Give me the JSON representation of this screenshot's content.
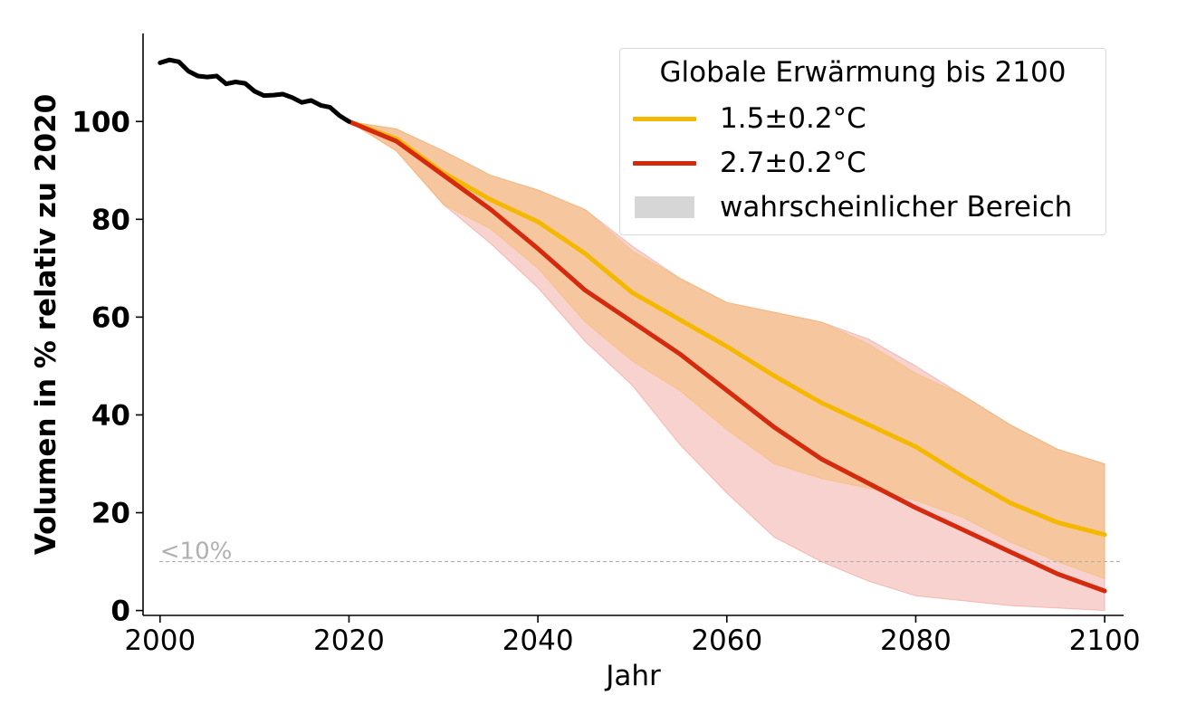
{
  "chart_data": {
    "type": "line",
    "title": "",
    "xlabel": "Jahr",
    "ylabel": "Volumen in % relativ zu 2020",
    "xlim": [
      1998.2,
      2102
    ],
    "ylim": [
      -1,
      118
    ],
    "xticks": [
      2000,
      2020,
      2040,
      2060,
      2080,
      2100
    ],
    "yticks": [
      0,
      20,
      40,
      60,
      80,
      100
    ],
    "grid": false,
    "legend": {
      "title": "Globale Erwärmung bis 2100",
      "placement": "top-right",
      "entries": [
        "1.5±0.2°C",
        "2.7±0.2°C",
        "wahrscheinlicher Bereich"
      ]
    },
    "reference_line": {
      "y": 10,
      "label": "<10%",
      "color": "#b0b0b0"
    },
    "colors": {
      "observed": "#000000",
      "low_warming": "#f5b800",
      "high_warming": "#d42a0e",
      "range_band": "#d6d6d6"
    },
    "observed": {
      "x": [
        2000,
        2001,
        2002,
        2003,
        2004,
        2005,
        2006,
        2007,
        2008,
        2009,
        2010,
        2011,
        2012,
        2013,
        2014,
        2015,
        2016,
        2017,
        2018,
        2019,
        2020
      ],
      "y": [
        112,
        112.6,
        112.2,
        110.3,
        109.3,
        109.1,
        109.3,
        107.7,
        108.1,
        107.8,
        106.2,
        105.3,
        105.4,
        105.6,
        104.9,
        103.9,
        104.3,
        103.3,
        102.9,
        101.2,
        100
      ]
    },
    "series": [
      {
        "name": "1.5±0.2°C",
        "x": [
          2020,
          2025,
          2030,
          2035,
          2040,
          2045,
          2050,
          2055,
          2060,
          2065,
          2070,
          2075,
          2080,
          2085,
          2090,
          2095,
          2100
        ],
        "y": [
          100,
          96.5,
          89.5,
          84,
          79.5,
          73,
          65,
          59.5,
          54,
          48,
          42.5,
          38,
          33.5,
          27.5,
          22,
          18,
          15.5
        ],
        "band_lower": [
          100,
          94,
          83,
          78,
          70,
          59,
          51,
          45,
          37,
          30,
          27,
          25,
          22.5,
          19,
          14,
          10,
          6.5
        ],
        "band_upper": [
          100,
          98.5,
          94,
          89,
          86,
          82,
          73.5,
          68,
          63,
          61,
          59,
          54.5,
          48.5,
          44,
          38,
          33,
          30
        ]
      },
      {
        "name": "2.7±0.2°C",
        "x": [
          2020,
          2025,
          2030,
          2035,
          2040,
          2045,
          2050,
          2055,
          2060,
          2065,
          2070,
          2075,
          2080,
          2085,
          2090,
          2095,
          2100
        ],
        "y": [
          100,
          96,
          89,
          82,
          74,
          65.5,
          59,
          52.5,
          45,
          37.5,
          31,
          26,
          21,
          16.5,
          12,
          7.5,
          4
        ],
        "band_lower": [
          100,
          94,
          83,
          75,
          66,
          55,
          46,
          34,
          24,
          15,
          10,
          6,
          3,
          2,
          1,
          0.5,
          0
        ],
        "band_upper": [
          100,
          98.5,
          94,
          89,
          86,
          82,
          74.5,
          68,
          63,
          61,
          59,
          55.5,
          50,
          44,
          38,
          33,
          30
        ]
      }
    ]
  }
}
